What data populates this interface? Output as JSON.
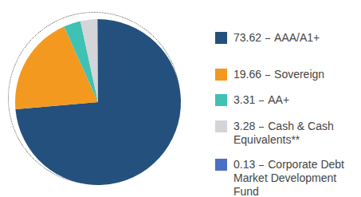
{
  "chart_data": {
    "type": "pie",
    "categories": [
      "AAA/A1+",
      "Sovereign",
      "AA+",
      "Cash & Cash Equivalents**",
      "Corporate Debt Market Development Fund"
    ],
    "values": [
      73.62,
      19.66,
      3.31,
      3.28,
      0.13
    ],
    "colors": [
      "#24507e",
      "#f3991f",
      "#3fc1b4",
      "#d3d5d8",
      "#4a70c4"
    ],
    "legend": "right"
  }
}
